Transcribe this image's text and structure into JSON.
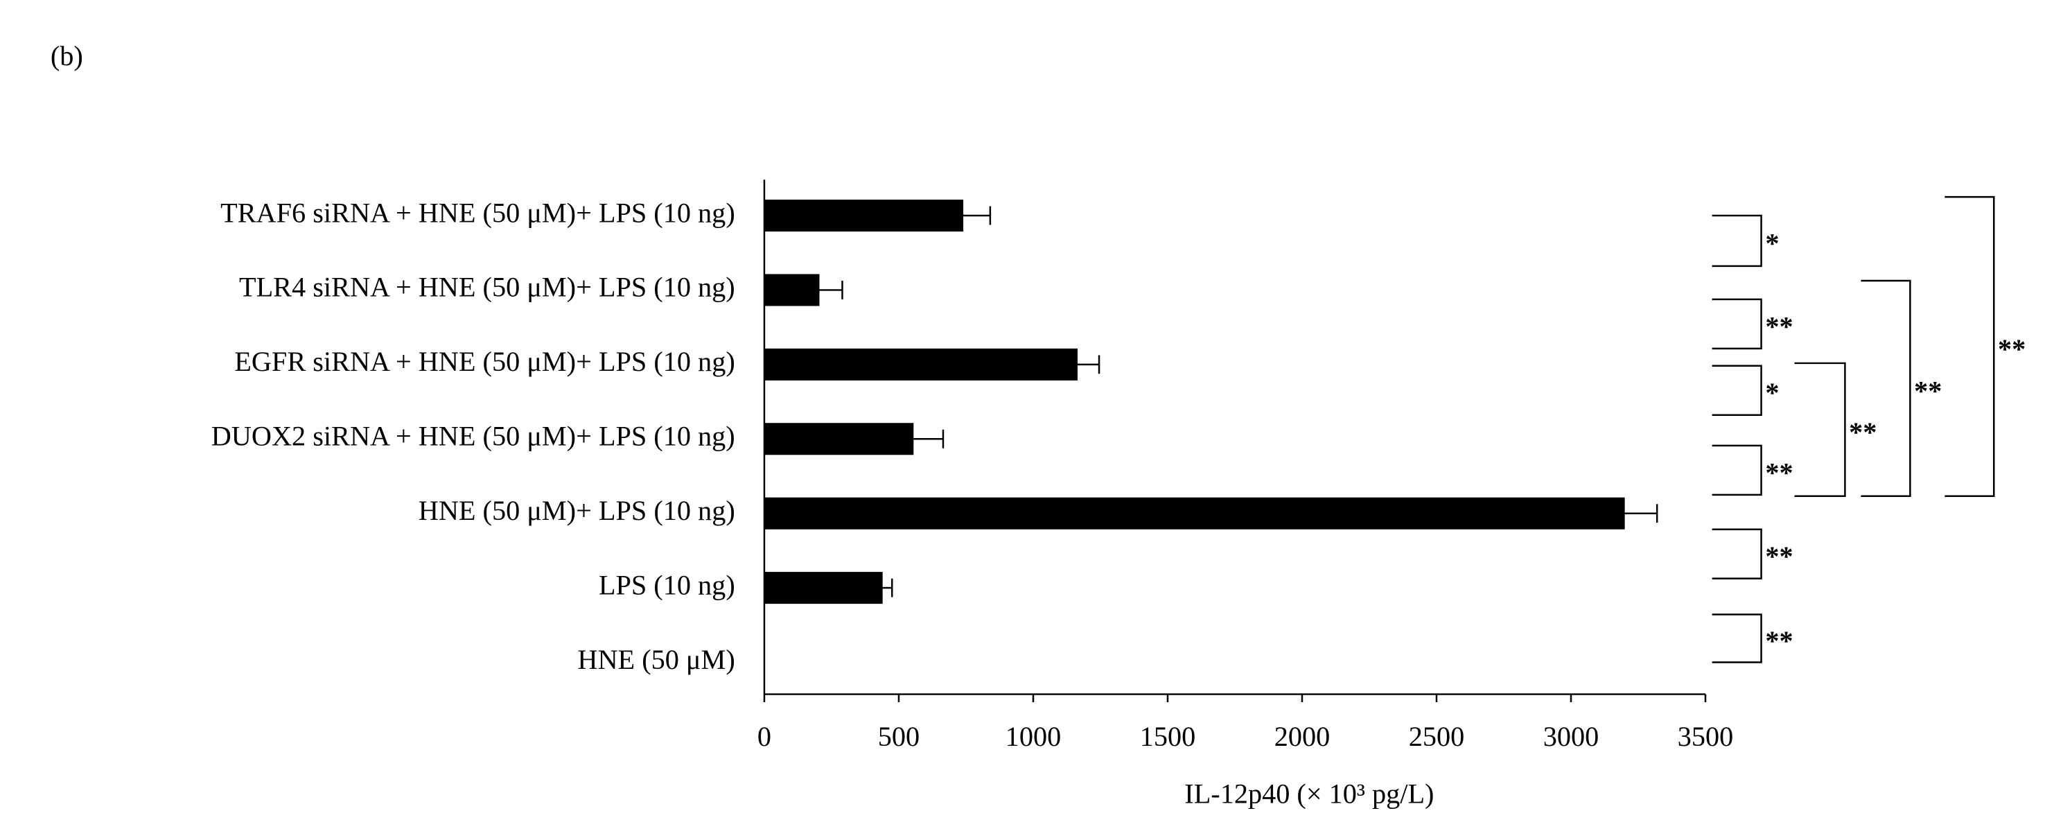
{
  "panel_label": "(b)",
  "chart_data": {
    "type": "hbar",
    "categories": [
      "TRAF6 siRNA + HNE (50 μM)+ LPS (10 ng)",
      "TLR4 siRNA + HNE (50 μM)+ LPS (10 ng)",
      "EGFR siRNA + HNE (50 μM)+ LPS (10 ng)",
      "DUOX2 siRNA + HNE (50 μM)+ LPS (10 ng)",
      "HNE (50 μM)+ LPS (10 ng)",
      "LPS (10 ng)",
      "HNE (50 μM)"
    ],
    "values": [
      740,
      205,
      1165,
      555,
      3200,
      440,
      0
    ],
    "errors": [
      100,
      85,
      80,
      110,
      120,
      35,
      0
    ],
    "color": "#000000",
    "xlim": [
      0,
      3500
    ],
    "xticks": [
      0,
      500,
      1000,
      1500,
      2000,
      2500,
      3000,
      3500
    ],
    "x_label": "IL-12p40 (× 10³ pg/L)",
    "annotations": [
      "*",
      "**",
      "*",
      "**",
      "**",
      "**",
      "**",
      "**",
      "**"
    ]
  }
}
